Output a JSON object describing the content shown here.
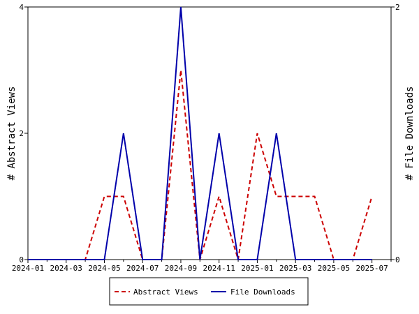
{
  "chart_data": {
    "type": "line",
    "title": "",
    "x": [
      "2024-01",
      "2024-02",
      "2024-03",
      "2024-04",
      "2024-05",
      "2024-06",
      "2024-07",
      "2024-08",
      "2024-09",
      "2024-10",
      "2024-11",
      "2024-12",
      "2025-01",
      "2025-02",
      "2025-03",
      "2025-04",
      "2025-05",
      "2025-06",
      "2025-07",
      "2025-08"
    ],
    "x_tick_labels": [
      "2024-01",
      "2024-03",
      "2024-05",
      "2024-07",
      "2024-09",
      "2024-11",
      "2025-01",
      "2025-03",
      "2025-05",
      "2025-07"
    ],
    "ylabel_left": "# Abstract Views",
    "ylabel_right": "# File Downloads",
    "ylim_left": [
      0,
      4
    ],
    "ylim_right": [
      0,
      2
    ],
    "yticks_left": [
      "0",
      "2",
      "4"
    ],
    "yticks_right": [
      "0",
      "2"
    ],
    "grid": false,
    "legend_position": "bottom-center",
    "series": [
      {
        "name": "Abstract Views",
        "axis": "left",
        "color": "#cc0000",
        "style": "dashed",
        "values": [
          0,
          0,
          0,
          0,
          1,
          1,
          0,
          0,
          3,
          0,
          1,
          0,
          2,
          1,
          1,
          1,
          0,
          0,
          1,
          null
        ]
      },
      {
        "name": "File Downloads",
        "axis": "right",
        "color": "#0000aa",
        "style": "solid",
        "values": [
          0,
          0,
          0,
          0,
          0,
          1,
          0,
          0,
          2,
          0,
          1,
          0,
          0,
          1,
          0,
          0,
          0,
          0,
          0,
          null
        ]
      }
    ]
  }
}
